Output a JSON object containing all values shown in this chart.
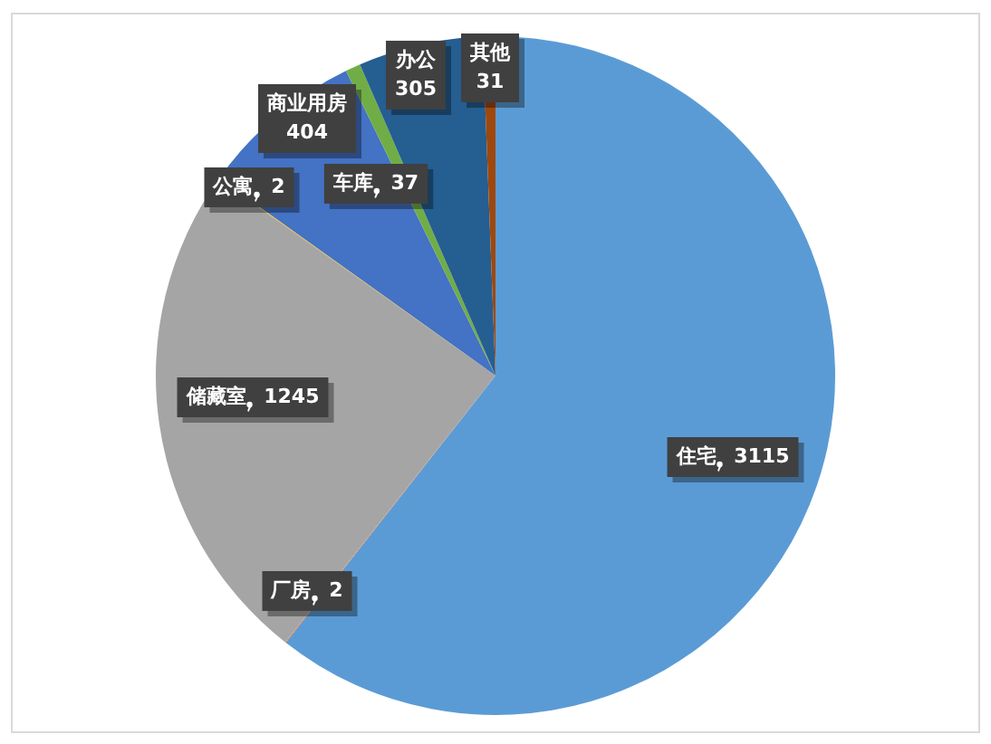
{
  "chart_data": {
    "type": "pie",
    "categories": [
      "住宅",
      "厂房",
      "储藏室",
      "公寓",
      "商业用房",
      "车库",
      "办公",
      "其他"
    ],
    "values": [
      3115,
      2,
      1245,
      2,
      404,
      37,
      305,
      31
    ],
    "colors": [
      "#5b9bd5",
      "#ed7d31",
      "#a5a5a5",
      "#ffc000",
      "#4472c4",
      "#70ad47",
      "#255e91",
      "#9e480e"
    ],
    "data_labels": true,
    "legend": false
  }
}
